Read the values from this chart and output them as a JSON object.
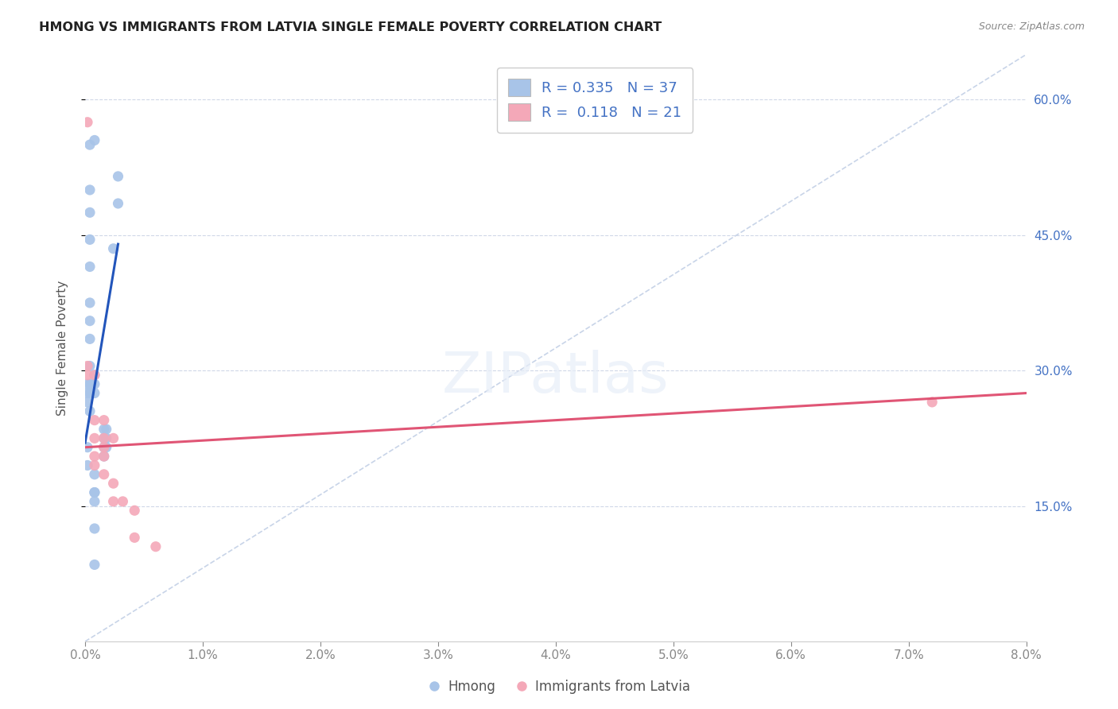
{
  "title": "HMONG VS IMMIGRANTS FROM LATVIA SINGLE FEMALE POVERTY CORRELATION CHART",
  "source": "Source: ZipAtlas.com",
  "ylabel": "Single Female Poverty",
  "legend_hmong": {
    "R": 0.335,
    "N": 37
  },
  "legend_latvia": {
    "R": 0.118,
    "N": 21
  },
  "hmong_color": "#a8c4e8",
  "latvia_color": "#f4a8b8",
  "hmong_line_color": "#2255bb",
  "latvia_line_color": "#e05575",
  "diagonal_color": "#c8d4e8",
  "background_color": "#ffffff",
  "hmong_x": [
    0.0008,
    0.0028,
    0.0028,
    0.0004,
    0.0004,
    0.0004,
    0.0004,
    0.0004,
    0.0004,
    0.0004,
    0.0004,
    0.0004,
    0.0004,
    0.0004,
    0.0004,
    0.0024,
    0.0018,
    0.0018,
    0.0018,
    0.0008,
    0.0008,
    0.0008,
    0.0002,
    0.0002,
    0.0002,
    0.0002,
    0.0002,
    0.0008,
    0.0016,
    0.0016,
    0.0016,
    0.0016,
    0.0008,
    0.0008,
    0.0008,
    0.0008,
    0.0008
  ],
  "hmong_y": [
    0.555,
    0.515,
    0.485,
    0.55,
    0.5,
    0.475,
    0.445,
    0.415,
    0.375,
    0.355,
    0.335,
    0.305,
    0.285,
    0.275,
    0.255,
    0.435,
    0.235,
    0.225,
    0.215,
    0.295,
    0.285,
    0.275,
    0.285,
    0.275,
    0.265,
    0.215,
    0.195,
    0.185,
    0.235,
    0.225,
    0.215,
    0.205,
    0.165,
    0.165,
    0.155,
    0.125,
    0.085
  ],
  "latvia_x": [
    0.0002,
    0.0002,
    0.0002,
    0.0008,
    0.0008,
    0.0008,
    0.0008,
    0.0008,
    0.0016,
    0.0016,
    0.0016,
    0.0016,
    0.0016,
    0.0024,
    0.0024,
    0.0024,
    0.0032,
    0.0042,
    0.0042,
    0.006,
    0.072
  ],
  "latvia_y": [
    0.575,
    0.305,
    0.295,
    0.295,
    0.245,
    0.225,
    0.205,
    0.195,
    0.245,
    0.225,
    0.215,
    0.205,
    0.185,
    0.175,
    0.225,
    0.155,
    0.155,
    0.145,
    0.115,
    0.105,
    0.265
  ],
  "hmong_line_x": [
    0.0,
    0.0028
  ],
  "hmong_line_y": [
    0.22,
    0.44
  ],
  "latvia_line_x": [
    0.0,
    0.08
  ],
  "latvia_line_y": [
    0.215,
    0.275
  ],
  "xmin": 0.0,
  "xmax": 0.08,
  "ymin": 0.0,
  "ymax": 0.65,
  "xtick_vals": [
    0.0,
    0.01,
    0.02,
    0.03,
    0.04,
    0.05,
    0.06,
    0.07,
    0.08
  ],
  "ytick_vals": [
    0.15,
    0.3,
    0.45,
    0.6
  ],
  "ytick_labels": [
    "15.0%",
    "30.0%",
    "45.0%",
    "60.0%"
  ]
}
